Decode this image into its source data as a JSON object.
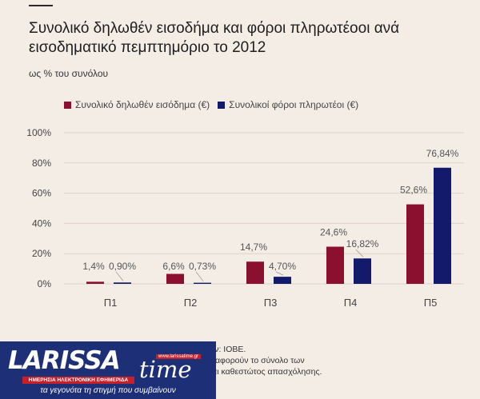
{
  "title": "Συνολικό δηλωθέν εισοδήμα και φόροι πληρωτέοοι ανά εισοδηματικό πεμπτημόριο το 2012",
  "subtitle": "ως % του συνόλου",
  "footer": {
    "line1": "ων: ΙΟΒΕ.",
    "line2": "α αφορούν το σύνολο των",
    "line3": "και καθεστώτος απασχόλησης."
  },
  "logo": {
    "wordmark": "LARISSA",
    "script": "time",
    "site": "www.larissatime.gr",
    "band": "ΗΜΕΡΗΣΙΑ ΗΛΕΚΤΡΟΝΙΚΗ ΕΦΗΜΕΡΙΔΑ",
    "tagline": "τα γεγονότα τη στιγμή που συμβαίνουν"
  },
  "colors": {
    "income": "#8b0f2e",
    "tax": "#141a6b",
    "grid": "#ddd3cb",
    "background": "#f4ede6"
  },
  "chart_data": {
    "type": "bar",
    "categories": [
      "Π1",
      "Π2",
      "Π3",
      "Π4",
      "Π5"
    ],
    "series": [
      {
        "name": "Συνολικό δηλωθέν εισόδημα (€)",
        "values": [
          1.4,
          6.6,
          14.7,
          24.6,
          52.6
        ],
        "labels": [
          "1,4%",
          "6,6%",
          "14,7%",
          "24,6%",
          "52,6%"
        ]
      },
      {
        "name": "Συνολικοί φόροι πληρωτέοι (€)",
        "values": [
          0.9,
          0.73,
          4.7,
          16.82,
          76.84
        ],
        "labels": [
          "0,90%",
          "0,73%",
          "4,70%",
          "16,82%",
          "76,84%"
        ]
      }
    ],
    "ylim": [
      0,
      100
    ],
    "yticks": [
      0,
      20,
      40,
      60,
      80,
      100
    ],
    "ytick_labels": [
      "0%",
      "20%",
      "40%",
      "60%",
      "80%",
      "100%"
    ],
    "grid": true,
    "legend": "top"
  }
}
